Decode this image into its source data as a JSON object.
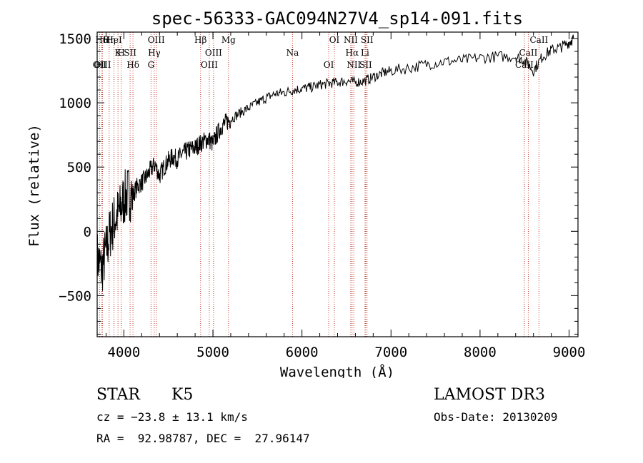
{
  "chart_data": {
    "type": "line",
    "title": "spec-56333-GAC094N27V4_sp14-091.fits",
    "xlabel": "Wavelength (Å)",
    "ylabel": "Flux (relative)",
    "xlim": [
      3700,
      9100
    ],
    "ylim": [
      -820,
      1550
    ],
    "xticks": [
      4000,
      5000,
      6000,
      7000,
      8000,
      9000
    ],
    "xtick_labels": [
      "4000",
      "5000",
      "6000",
      "7000",
      "8000",
      "9000"
    ],
    "yticks": [
      -500,
      0,
      500,
      1000,
      1500
    ],
    "ytick_labels": [
      "−500",
      "0",
      "500",
      "1000",
      "1500"
    ],
    "grid": false,
    "series": [
      {
        "name": "flux",
        "x": [
          3700,
          3750,
          3800,
          3850,
          3900,
          3950,
          4000,
          4050,
          4100,
          4150,
          4200,
          4250,
          4300,
          4350,
          4400,
          4450,
          4500,
          4550,
          4600,
          4650,
          4700,
          4750,
          4800,
          4850,
          4900,
          4950,
          5000,
          5050,
          5100,
          5150,
          5200,
          5300,
          5400,
          5500,
          5600,
          5700,
          5800,
          5900,
          6000,
          6100,
          6200,
          6300,
          6400,
          6500,
          6600,
          6700,
          6800,
          6900,
          7000,
          7200,
          7400,
          7600,
          7800,
          8000,
          8200,
          8400,
          8500,
          8600,
          8700,
          8800,
          8900,
          9000,
          9050
        ],
        "values": [
          -200,
          -300,
          -150,
          0,
          100,
          150,
          250,
          300,
          280,
          350,
          380,
          420,
          480,
          520,
          430,
          500,
          550,
          580,
          560,
          600,
          620,
          640,
          650,
          680,
          700,
          720,
          680,
          760,
          820,
          850,
          870,
          920,
          960,
          1000,
          1040,
          1070,
          1080,
          1100,
          1110,
          1120,
          1140,
          1150,
          1160,
          1170,
          1160,
          1170,
          1200,
          1230,
          1250,
          1270,
          1300,
          1320,
          1330,
          1350,
          1360,
          1360,
          1330,
          1250,
          1360,
          1410,
          1430,
          1470,
          1500
        ]
      }
    ],
    "lines": [
      {
        "label": "Hδ",
        "wavelength": 3750
      },
      {
        "label": "K",
        "wavelength": 3934
      },
      {
        "label": "Hδ",
        "wavelength": 4102
      },
      {
        "label": "OIII",
        "wavelength": 4364
      },
      {
        "label": "Hγ",
        "wavelength": 4341
      },
      {
        "label": "OII",
        "wavelength": 3727
      },
      {
        "label": "HeI",
        "wavelength": 3889
      },
      {
        "label": "SII",
        "wavelength": 4070
      },
      {
        "label": "OIII",
        "wavelength": 3760
      },
      {
        "label": "Hη",
        "wavelength": 3835
      },
      {
        "label": "H",
        "wavelength": 3970
      },
      {
        "label": "G",
        "wavelength": 4305
      },
      {
        "label": "Hβ",
        "wavelength": 4861
      },
      {
        "label": "OIII",
        "wavelength": 5007
      },
      {
        "label": "OIII",
        "wavelength": 4959
      },
      {
        "label": "Mg",
        "wavelength": 5175
      },
      {
        "label": "Na",
        "wavelength": 5894
      },
      {
        "label": "OI",
        "wavelength": 6300
      },
      {
        "label": "OI",
        "wavelength": 6364
      },
      {
        "label": "Hα",
        "wavelength": 6563
      },
      {
        "label": "SII",
        "wavelength": 6716
      },
      {
        "label": "NII",
        "wavelength": 6548
      },
      {
        "label": "Li",
        "wavelength": 6708
      },
      {
        "label": "NII",
        "wavelength": 6583
      },
      {
        "label": "SII",
        "wavelength": 6731
      },
      {
        "label": "CaII",
        "wavelength": 8542
      },
      {
        "label": "CaII",
        "wavelength": 8498
      },
      {
        "label": "CaII",
        "wavelength": 8662
      }
    ]
  },
  "info": {
    "class_label": "STAR",
    "subclass": "K5",
    "survey": "LAMOST DR3",
    "cz": "cz = −23.8 ± 13.1 km/s",
    "obs_date": "Obs-Date: 20130209",
    "coords": "RA =  92.98787, DEC =  27.96147"
  },
  "colors": {
    "line_markers": "#c0392b",
    "spectrum": "#000000",
    "axes": "#000000"
  }
}
